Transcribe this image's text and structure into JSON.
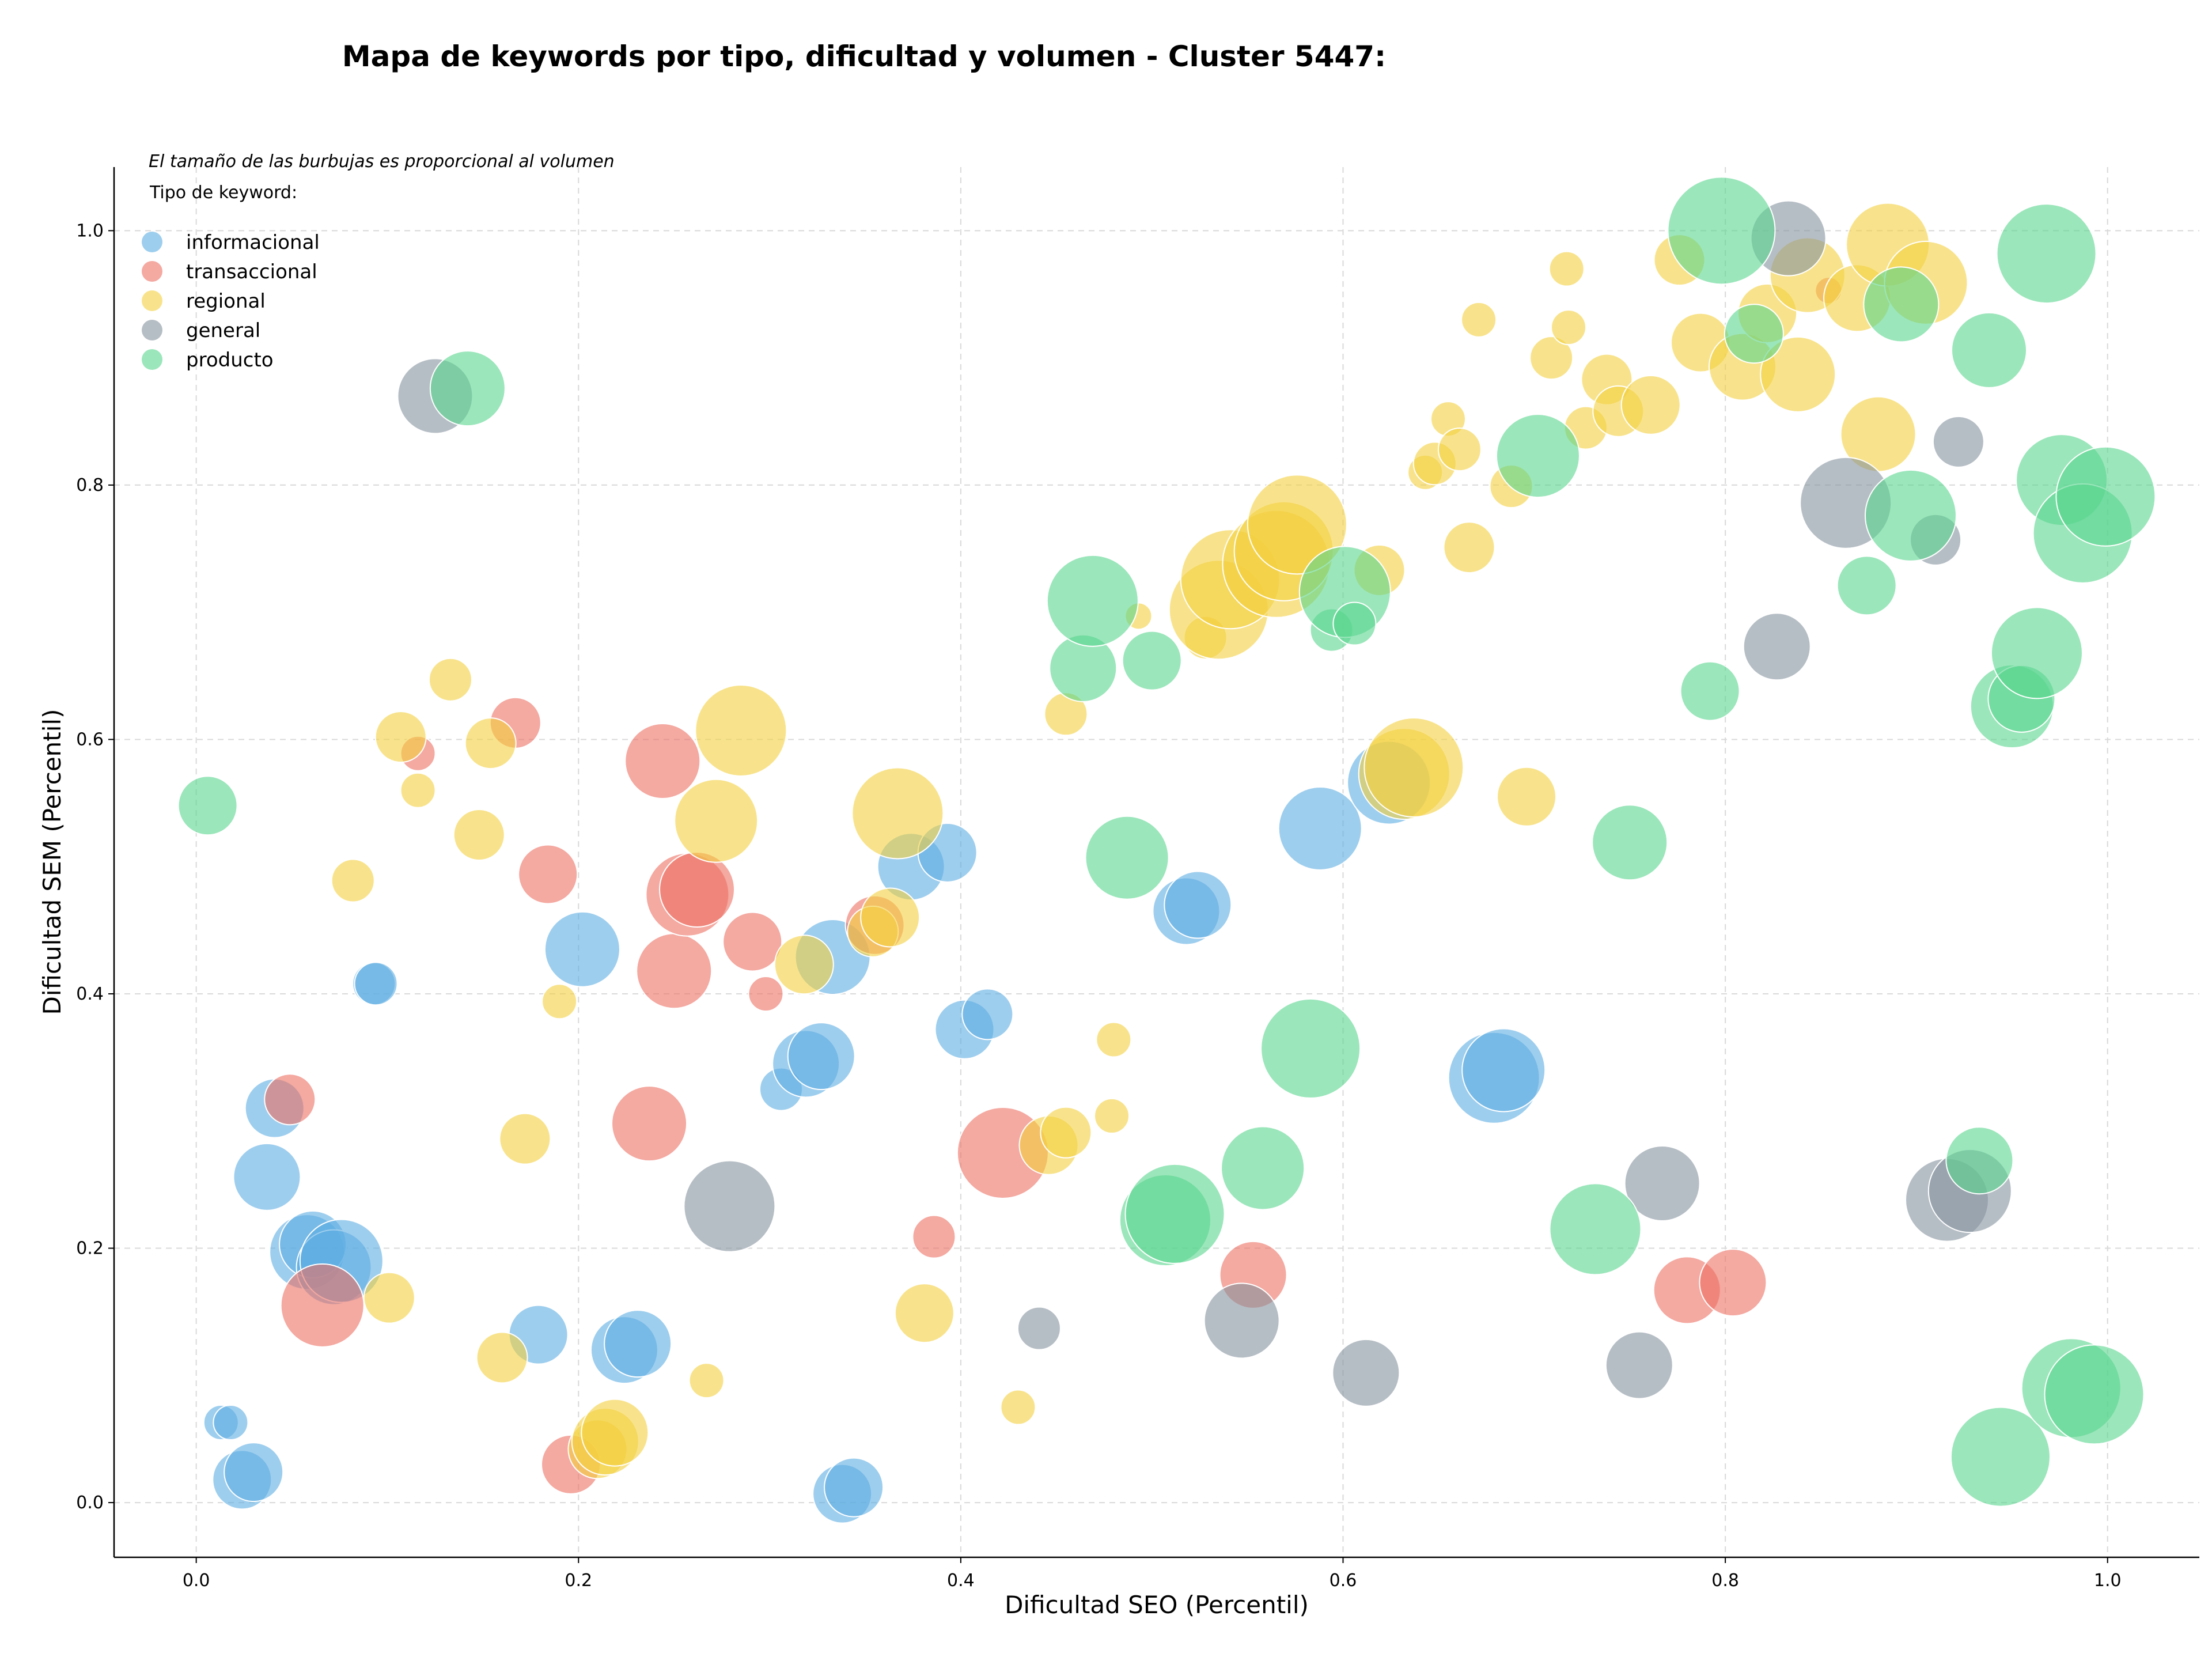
{
  "chart_data": {
    "type": "scatter",
    "title": "Mapa de keywords por tipo, dificultad y volumen - Cluster 5447:",
    "subtitle": "El tamaño de las burbujas es proporcional al volumen",
    "xlabel": "Dificultad SEO (Percentil)",
    "ylabel": "Dificultad SEM (Percentil)",
    "xlim": [
      -0.043,
      1.048
    ],
    "ylim": [
      -0.043,
      1.05
    ],
    "xticks": [
      "0.0",
      "0.2",
      "0.4",
      "0.6",
      "0.8",
      "1.0"
    ],
    "yticks": [
      "0.0",
      "0.2",
      "0.4",
      "0.6",
      "0.8",
      "1.0"
    ],
    "grid": true,
    "legend": {
      "title": "Tipo de keyword:",
      "placement": "top-left"
    },
    "series": [
      {
        "name": "informacional",
        "color": "#5DADE2",
        "points": [
          [
            0.024,
            0.018,
            5
          ],
          [
            0.03,
            0.024,
            5
          ],
          [
            0.013,
            0.063,
            2
          ],
          [
            0.018,
            0.063,
            2
          ],
          [
            0.037,
            0.256,
            6
          ],
          [
            0.041,
            0.31,
            5
          ],
          [
            0.058,
            0.197,
            7
          ],
          [
            0.061,
            0.203,
            6
          ],
          [
            0.072,
            0.185,
            7
          ],
          [
            0.076,
            0.19,
            8
          ],
          [
            0.093,
            0.408,
            3
          ],
          [
            0.094,
            0.408,
            3
          ],
          [
            0.179,
            0.132,
            5
          ],
          [
            0.202,
            0.435,
            7
          ],
          [
            0.224,
            0.12,
            6
          ],
          [
            0.231,
            0.125,
            6
          ],
          [
            0.306,
            0.325,
            3
          ],
          [
            0.319,
            0.345,
            6
          ],
          [
            0.327,
            0.351,
            6
          ],
          [
            0.333,
            0.429,
            7
          ],
          [
            0.338,
            0.007,
            5
          ],
          [
            0.344,
            0.012,
            5
          ],
          [
            0.374,
            0.5,
            6
          ],
          [
            0.393,
            0.511,
            5
          ],
          [
            0.402,
            0.372,
            5
          ],
          [
            0.414,
            0.384,
            4
          ],
          [
            0.518,
            0.465,
            6
          ],
          [
            0.524,
            0.47,
            6
          ],
          [
            0.588,
            0.53,
            8
          ],
          [
            0.624,
            0.566,
            8
          ],
          [
            0.679,
            0.334,
            9
          ],
          [
            0.684,
            0.34,
            8
          ]
        ]
      },
      {
        "name": "transaccional",
        "color": "#EC7063",
        "points": [
          [
            0.049,
            0.317,
            4
          ],
          [
            0.066,
            0.155,
            8
          ],
          [
            0.116,
            0.589,
            2
          ],
          [
            0.167,
            0.613,
            4
          ],
          [
            0.184,
            0.494,
            5
          ],
          [
            0.196,
            0.03,
            5
          ],
          [
            0.237,
            0.298,
            7
          ],
          [
            0.244,
            0.583,
            7
          ],
          [
            0.25,
            0.418,
            7
          ],
          [
            0.257,
            0.478,
            8
          ],
          [
            0.262,
            0.482,
            7
          ],
          [
            0.291,
            0.441,
            5
          ],
          [
            0.298,
            0.4,
            2
          ],
          [
            0.355,
            0.454,
            5
          ],
          [
            0.386,
            0.209,
            3
          ],
          [
            0.422,
            0.275,
            9
          ],
          [
            0.553,
            0.179,
            6
          ],
          [
            0.78,
            0.167,
            6
          ],
          [
            0.804,
            0.173,
            6
          ],
          [
            0.854,
            0.953,
            1
          ]
        ]
      },
      {
        "name": "regional",
        "color": "#F4D03F",
        "points": [
          [
            0.082,
            0.489,
            3
          ],
          [
            0.101,
            0.161,
            4
          ],
          [
            0.107,
            0.602,
            4
          ],
          [
            0.116,
            0.56,
            2
          ],
          [
            0.133,
            0.647,
            3
          ],
          [
            0.148,
            0.525,
            4
          ],
          [
            0.154,
            0.597,
            4
          ],
          [
            0.16,
            0.114,
            4
          ],
          [
            0.172,
            0.286,
            4
          ],
          [
            0.19,
            0.394,
            2
          ],
          [
            0.21,
            0.042,
            5
          ],
          [
            0.214,
            0.048,
            6
          ],
          [
            0.219,
            0.055,
            6
          ],
          [
            0.267,
            0.096,
            2
          ],
          [
            0.272,
            0.536,
            8
          ],
          [
            0.285,
            0.607,
            9
          ],
          [
            0.318,
            0.423,
            5
          ],
          [
            0.354,
            0.449,
            4
          ],
          [
            0.363,
            0.46,
            5
          ],
          [
            0.367,
            0.542,
            9
          ],
          [
            0.381,
            0.149,
            5
          ],
          [
            0.43,
            0.075,
            2
          ],
          [
            0.446,
            0.281,
            5
          ],
          [
            0.455,
            0.291,
            4
          ],
          [
            0.455,
            0.62,
            3
          ],
          [
            0.479,
            0.304,
            2
          ],
          [
            0.48,
            0.364,
            2
          ],
          [
            0.493,
            0.697,
            1
          ],
          [
            0.528,
            0.68,
            3
          ],
          [
            0.535,
            0.702,
            10
          ],
          [
            0.541,
            0.726,
            10
          ],
          [
            0.565,
            0.738,
            11
          ],
          [
            0.569,
            0.748,
            10
          ],
          [
            0.576,
            0.769,
            10
          ],
          [
            0.619,
            0.733,
            4
          ],
          [
            0.632,
            0.573,
            9
          ],
          [
            0.637,
            0.578,
            10
          ],
          [
            0.643,
            0.81,
            2
          ],
          [
            0.648,
            0.817,
            3
          ],
          [
            0.655,
            0.852,
            2
          ],
          [
            0.661,
            0.828,
            3
          ],
          [
            0.666,
            0.751,
            4
          ],
          [
            0.671,
            0.93,
            2
          ],
          [
            0.688,
            0.799,
            3
          ],
          [
            0.696,
            0.555,
            5
          ],
          [
            0.709,
            0.9,
            3
          ],
          [
            0.717,
            0.97,
            2
          ],
          [
            0.718,
            0.924,
            2
          ],
          [
            0.727,
            0.845,
            3
          ],
          [
            0.738,
            0.883,
            4
          ],
          [
            0.744,
            0.858,
            4
          ],
          [
            0.761,
            0.863,
            5
          ],
          [
            0.776,
            0.977,
            4
          ],
          [
            0.787,
            0.912,
            5
          ],
          [
            0.809,
            0.893,
            6
          ],
          [
            0.822,
            0.935,
            5
          ],
          [
            0.838,
            0.887,
            7
          ],
          [
            0.843,
            0.965,
            7
          ],
          [
            0.869,
            0.947,
            6
          ],
          [
            0.88,
            0.84,
            7
          ],
          [
            0.885,
            0.989,
            8
          ],
          [
            0.905,
            0.959,
            8
          ]
        ]
      },
      {
        "name": "general",
        "color": "#85929E",
        "points": [
          [
            0.125,
            0.87,
            7
          ],
          [
            0.279,
            0.233,
            9
          ],
          [
            0.441,
            0.137,
            3
          ],
          [
            0.547,
            0.143,
            7
          ],
          [
            0.612,
            0.102,
            6
          ],
          [
            0.755,
            0.108,
            6
          ],
          [
            0.767,
            0.251,
            7
          ],
          [
            0.827,
            0.673,
            6
          ],
          [
            0.833,
            0.994,
            7
          ],
          [
            0.863,
            0.786,
            9
          ],
          [
            0.91,
            0.757,
            4
          ],
          [
            0.916,
            0.238,
            8
          ],
          [
            0.922,
            0.834,
            4
          ],
          [
            0.928,
            0.245,
            8
          ]
        ]
      },
      {
        "name": "producto",
        "color": "#58D68D",
        "points": [
          [
            0.006,
            0.548,
            5
          ],
          [
            0.142,
            0.876,
            7
          ],
          [
            0.464,
            0.656,
            6
          ],
          [
            0.469,
            0.709,
            9
          ],
          [
            0.487,
            0.507,
            8
          ],
          [
            0.5,
            0.662,
            5
          ],
          [
            0.507,
            0.222,
            9
          ],
          [
            0.512,
            0.227,
            10
          ],
          [
            0.558,
            0.263,
            8
          ],
          [
            0.583,
            0.357,
            10
          ],
          [
            0.594,
            0.686,
            3
          ],
          [
            0.601,
            0.716,
            9
          ],
          [
            0.606,
            0.691,
            3
          ],
          [
            0.702,
            0.823,
            8
          ],
          [
            0.732,
            0.215,
            9
          ],
          [
            0.75,
            0.519,
            7
          ],
          [
            0.792,
            0.638,
            5
          ],
          [
            0.798,
            1.0,
            11
          ],
          [
            0.815,
            0.919,
            5
          ],
          [
            0.874,
            0.721,
            5
          ],
          [
            0.892,
            0.942,
            7
          ],
          [
            0.897,
            0.776,
            9
          ],
          [
            0.938,
            0.906,
            7
          ],
          [
            0.944,
            0.036,
            10
          ],
          [
            0.95,
            0.626,
            8
          ],
          [
            0.955,
            0.632,
            6
          ],
          [
            0.963,
            0.668,
            9
          ],
          [
            0.968,
            0.982,
            10
          ],
          [
            0.976,
            0.804,
            9
          ],
          [
            0.981,
            0.09,
            10
          ],
          [
            0.987,
            0.762,
            10
          ],
          [
            0.993,
            0.085,
            10
          ],
          [
            0.999,
            0.791,
            10
          ],
          [
            0.933,
            0.269,
            6
          ]
        ]
      }
    ]
  }
}
